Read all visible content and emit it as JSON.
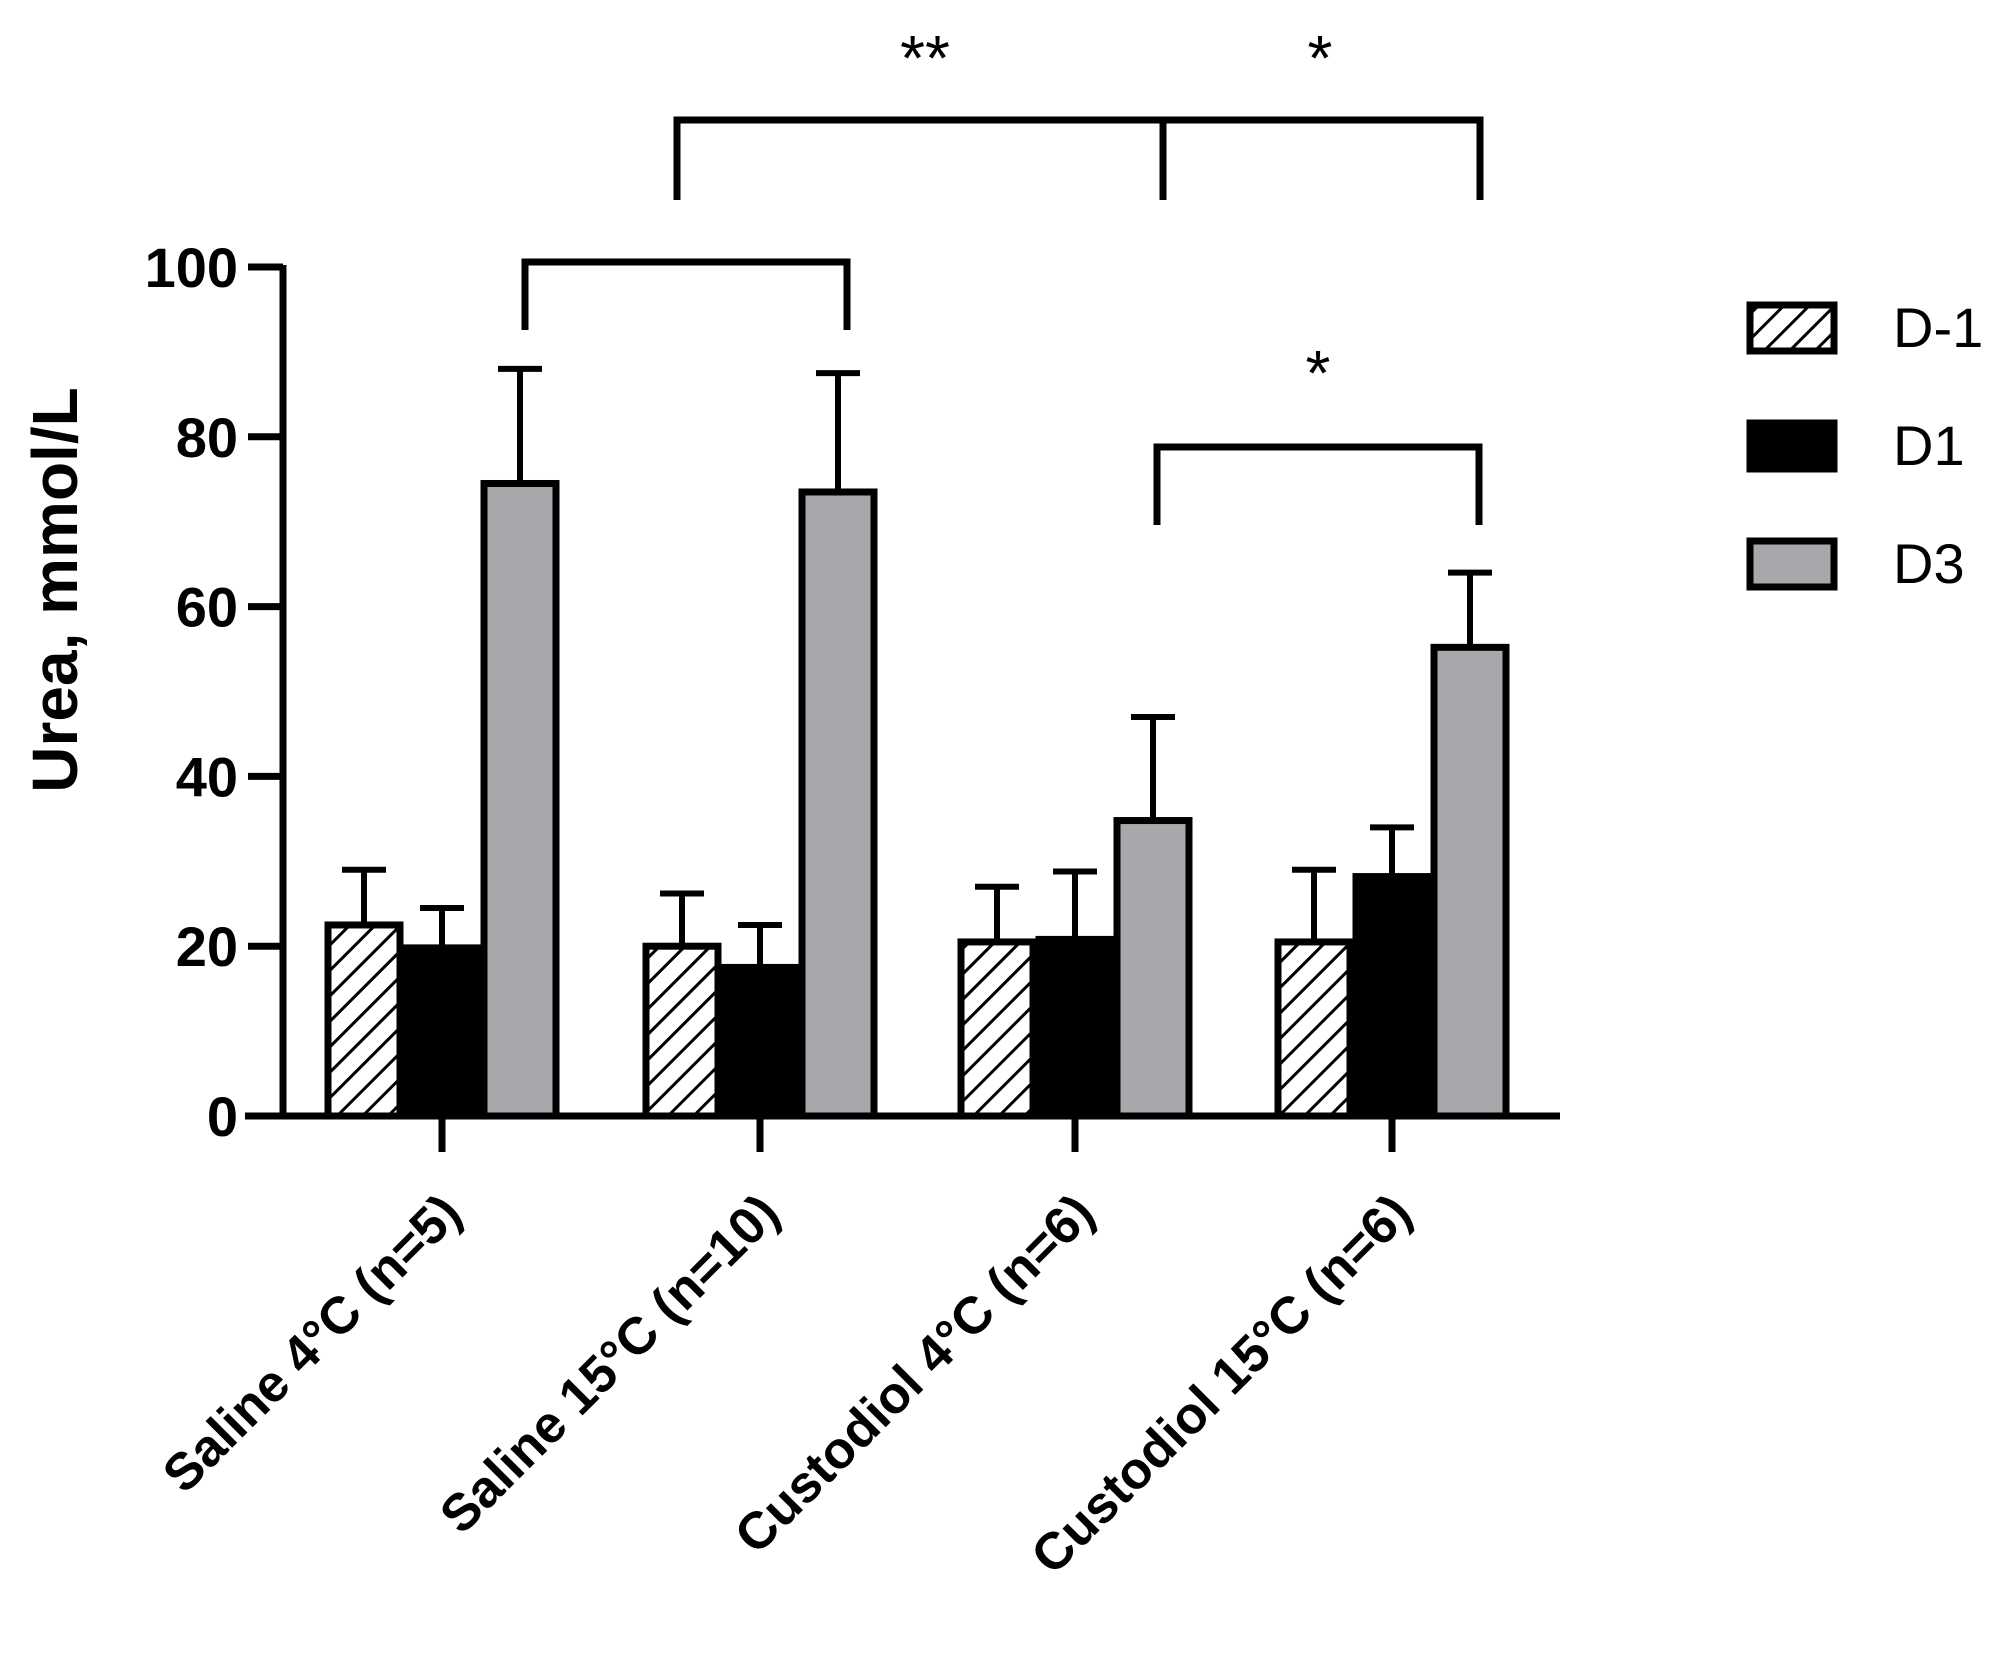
{
  "chart_data": {
    "type": "bar",
    "title": "",
    "xlabel": "",
    "ylabel": "Urea, mmol/L",
    "ylim": [
      0,
      100
    ],
    "yticks": [
      0,
      20,
      40,
      60,
      80,
      100
    ],
    "categories": [
      "Saline 4°C (n=5)",
      "Saline 15°C (n=10)",
      "Custodiol 4°C (n=6)",
      "Custodiol 15°C (n=6)"
    ],
    "series": [
      {
        "name": "D-1",
        "values": [
          22.5,
          20.0,
          20.5,
          20.5
        ],
        "errors": [
          6.5,
          6.2,
          6.5,
          8.5
        ],
        "fill": "hatch"
      },
      {
        "name": "D1",
        "values": [
          19.8,
          17.5,
          20.8,
          28.2
        ],
        "errors": [
          4.7,
          5.0,
          8.0,
          5.8
        ],
        "fill": "#000000"
      },
      {
        "name": "D3",
        "values": [
          74.5,
          73.5,
          34.8,
          55.2
        ],
        "errors": [
          13.5,
          14.0,
          12.2,
          8.8
        ],
        "fill": "#a7a8ab"
      }
    ],
    "legend_position": "right",
    "grid": false,
    "significance": [
      {
        "label": "**",
        "from": {
          "category": 1,
          "series": 0
        },
        "to": {
          "category": 2,
          "series": 2
        }
      },
      {
        "label": "*",
        "from": {
          "category": 2,
          "series": 2
        },
        "to": {
          "category": 3,
          "series": 2
        }
      },
      {
        "label": "",
        "from": {
          "category": 0,
          "series": 2
        },
        "to": {
          "category": 1,
          "series": 2
        }
      },
      {
        "label": "*",
        "from": {
          "category": 2,
          "series": 2
        },
        "to": {
          "category": 3,
          "series": 2
        }
      }
    ]
  }
}
